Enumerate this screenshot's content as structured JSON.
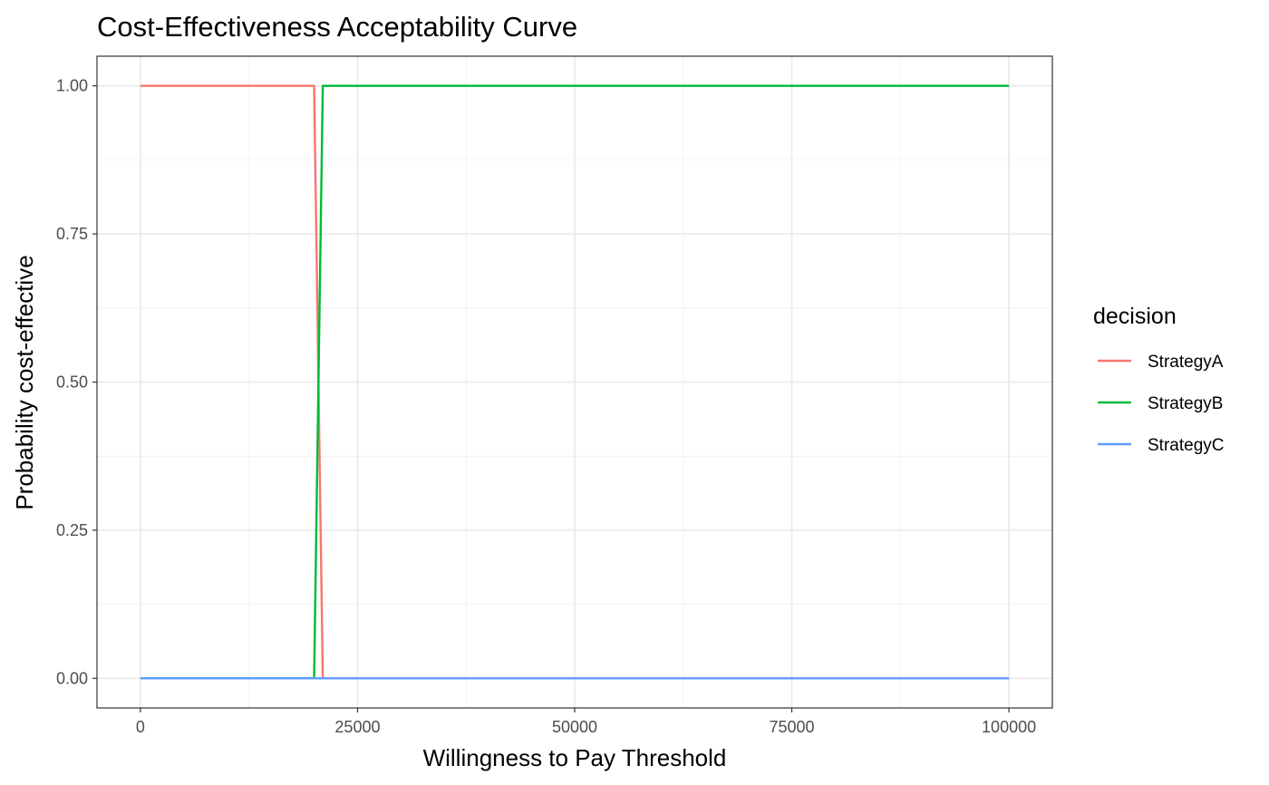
{
  "chart_data": {
    "type": "line",
    "title": "Cost-Effectiveness Acceptability Curve",
    "xlabel": "Willingness to Pay Threshold",
    "ylabel": "Probability cost-effective",
    "xlim": [
      -5000,
      105000
    ],
    "ylim": [
      -0.05,
      1.05
    ],
    "x_ticks": [
      0,
      25000,
      50000,
      75000,
      100000
    ],
    "x_tick_labels": [
      "0",
      "25000",
      "50000",
      "75000",
      "100000"
    ],
    "y_ticks": [
      0,
      0.25,
      0.5,
      0.75,
      1.0
    ],
    "y_tick_labels": [
      "0.00",
      "0.25",
      "0.50",
      "0.75",
      "1.00"
    ],
    "grid": true,
    "legend": {
      "title": "decision",
      "position": "right"
    },
    "series": [
      {
        "name": "StrategyA",
        "color": "#F8766D",
        "x": [
          0,
          20000,
          21000,
          100000
        ],
        "y": [
          1,
          1,
          0,
          0
        ]
      },
      {
        "name": "StrategyB",
        "color": "#00BA38",
        "x": [
          0,
          20000,
          21000,
          100000
        ],
        "y": [
          0,
          0,
          1,
          1
        ]
      },
      {
        "name": "StrategyC",
        "color": "#619CFF",
        "x": [
          0,
          100000
        ],
        "y": [
          0,
          0
        ]
      }
    ]
  }
}
